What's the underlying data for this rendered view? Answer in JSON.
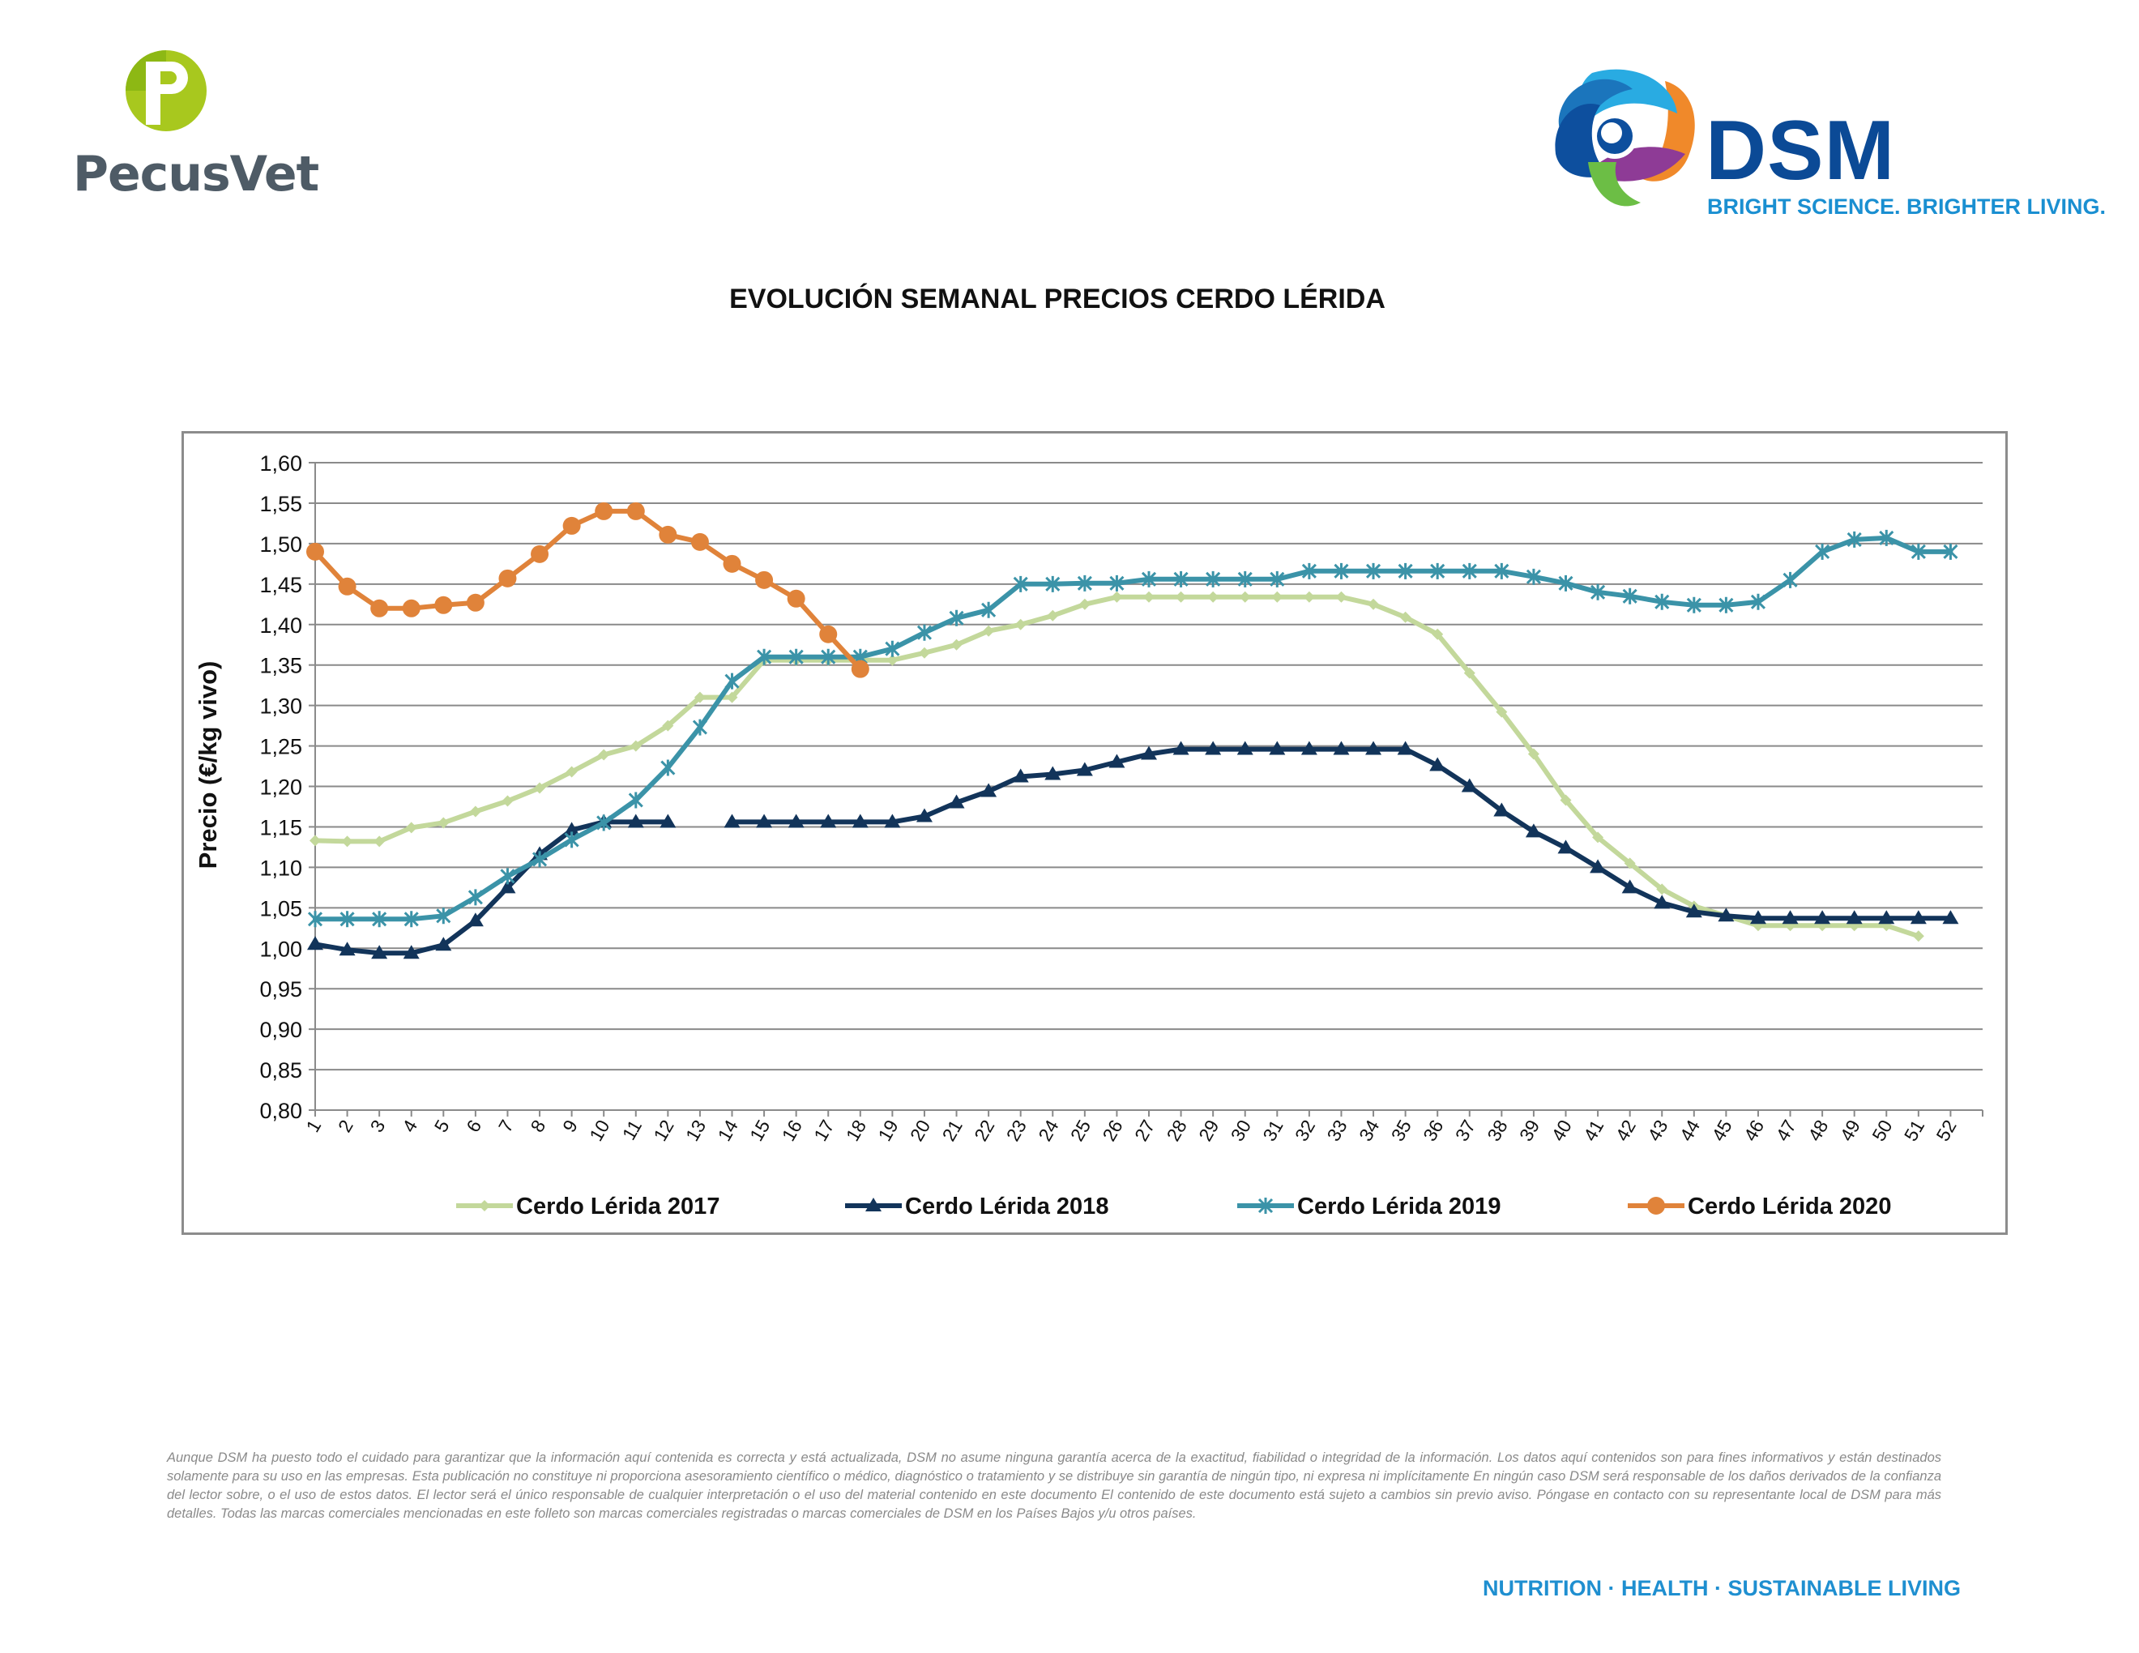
{
  "header": {
    "left_logo": {
      "name": "PecusVet",
      "mark_icon": "pecusvet-p-icon"
    },
    "right_logo": {
      "name": "DSM",
      "tagline": "BRIGHT SCIENCE. BRIGHTER LIVING.",
      "mark_icon": "dsm-swirl-icon"
    }
  },
  "title": "EVOLUCIÓN SEMANAL PRECIOS CERDO LÉRIDA",
  "chart_data": {
    "type": "line",
    "title": "EVOLUCIÓN SEMANAL PRECIOS CERDO LÉRIDA",
    "xlabel": "",
    "ylabel": "Precio (€/kg vivo)",
    "ylim": [
      0.8,
      1.6
    ],
    "y_ticks": [
      "0,80",
      "0,85",
      "0,90",
      "0,95",
      "1,00",
      "1,05",
      "1,10",
      "1,15",
      "1,20",
      "1,25",
      "1,30",
      "1,35",
      "1,40",
      "1,45",
      "1,50",
      "1,55",
      "1,60"
    ],
    "x": [
      1,
      2,
      3,
      4,
      5,
      6,
      7,
      8,
      9,
      10,
      11,
      12,
      13,
      14,
      15,
      16,
      17,
      18,
      19,
      20,
      21,
      22,
      23,
      24,
      25,
      26,
      27,
      28,
      29,
      30,
      31,
      32,
      33,
      34,
      35,
      36,
      37,
      38,
      39,
      40,
      41,
      42,
      43,
      44,
      45,
      46,
      47,
      48,
      49,
      50,
      51,
      52
    ],
    "grid": true,
    "legend_position": "bottom",
    "series": [
      {
        "name": "Cerdo Lérida 2017",
        "color": "#c3d89b",
        "marker": "diamond",
        "values": [
          1.133,
          1.132,
          1.132,
          1.149,
          1.155,
          1.169,
          1.182,
          1.198,
          1.218,
          1.239,
          1.25,
          1.275,
          1.31,
          1.31,
          1.356,
          1.356,
          1.356,
          1.356,
          1.356,
          1.365,
          1.375,
          1.392,
          1.4,
          1.411,
          1.425,
          1.434,
          1.434,
          1.434,
          1.434,
          1.434,
          1.434,
          1.434,
          1.434,
          1.425,
          1.409,
          1.388,
          1.34,
          1.292,
          1.24,
          1.183,
          1.137,
          1.105,
          1.073,
          1.052,
          1.04,
          1.028,
          1.028,
          1.028,
          1.028,
          1.028,
          1.015,
          null
        ]
      },
      {
        "name": "Cerdo Lérida 2018",
        "color": "#12345a",
        "marker": "triangle",
        "values": [
          1.005,
          0.998,
          0.994,
          0.994,
          1.004,
          1.034,
          1.075,
          1.116,
          1.146,
          1.156,
          1.156,
          1.156,
          null,
          1.156,
          1.156,
          1.156,
          1.156,
          1.156,
          1.156,
          1.163,
          1.18,
          1.194,
          1.212,
          1.215,
          1.22,
          1.23,
          1.24,
          1.246,
          1.246,
          1.246,
          1.246,
          1.246,
          1.246,
          1.246,
          1.246,
          1.226,
          1.2,
          1.17,
          1.144,
          1.124,
          1.1,
          1.075,
          1.056,
          1.045,
          1.04,
          1.037,
          1.037,
          1.037,
          1.037,
          1.037,
          1.037,
          1.037
        ]
      },
      {
        "name": "Cerdo Lérida 2019",
        "color": "#3b93a8",
        "marker": "asterisk",
        "values": [
          1.036,
          1.036,
          1.036,
          1.036,
          1.04,
          1.063,
          1.089,
          1.11,
          1.134,
          1.155,
          1.183,
          1.223,
          1.273,
          1.33,
          1.36,
          1.36,
          1.36,
          1.36,
          1.37,
          1.39,
          1.408,
          1.418,
          1.45,
          1.45,
          1.451,
          1.451,
          1.456,
          1.456,
          1.456,
          1.456,
          1.456,
          1.466,
          1.466,
          1.466,
          1.466,
          1.466,
          1.466,
          1.466,
          1.459,
          1.451,
          1.44,
          1.435,
          1.428,
          1.424,
          1.424,
          1.428,
          1.455,
          1.49,
          1.505,
          1.507,
          1.49,
          1.49
        ]
      },
      {
        "name": "Cerdo Lérida 2020",
        "color": "#e0833a",
        "marker": "circle",
        "values": [
          1.49,
          1.447,
          1.42,
          1.42,
          1.424,
          1.427,
          1.457,
          1.487,
          1.522,
          1.54,
          1.54,
          1.511,
          1.502,
          1.475,
          1.455,
          1.432,
          1.388,
          1.345,
          null,
          null,
          null,
          null,
          null,
          null,
          null,
          null,
          null,
          null,
          null,
          null,
          null,
          null,
          null,
          null,
          null,
          null,
          null,
          null,
          null,
          null,
          null,
          null,
          null,
          null,
          null,
          null,
          null,
          null,
          null,
          null,
          null,
          null
        ]
      }
    ]
  },
  "disclaimer": "Aunque DSM ha puesto todo el cuidado para garantizar que la información aquí contenida es correcta y está actualizada, DSM no asume ninguna garantía acerca de la exactitud, fiabilidad o integridad de la información. Los datos aquí contenidos son para fines informativos y están destinados solamente para su uso en las empresas. Esta publicación no constituye ni proporciona asesoramiento científico o médico, diagnóstico o tratamiento y se distribuye sin garantía de ningún tipo, ni expresa ni implícitamente En ningún caso DSM será responsable de los daños derivados de la confianza del lector sobre, o el uso de estos datos. El lector será el único responsable de cualquier interpretación o el uso del material contenido en este documento El contenido de este documento está sujeto a cambios sin previo aviso. Póngase en contacto con su representante local de DSM para más detalles. Todas las marcas comerciales mencionadas en este folleto son marcas comerciales registradas o marcas comerciales de DSM en los Países Bajos y/u otros países.",
  "footer": {
    "slogan": "NUTRITION · HEALTH · SUSTAINABLE LIVING"
  }
}
